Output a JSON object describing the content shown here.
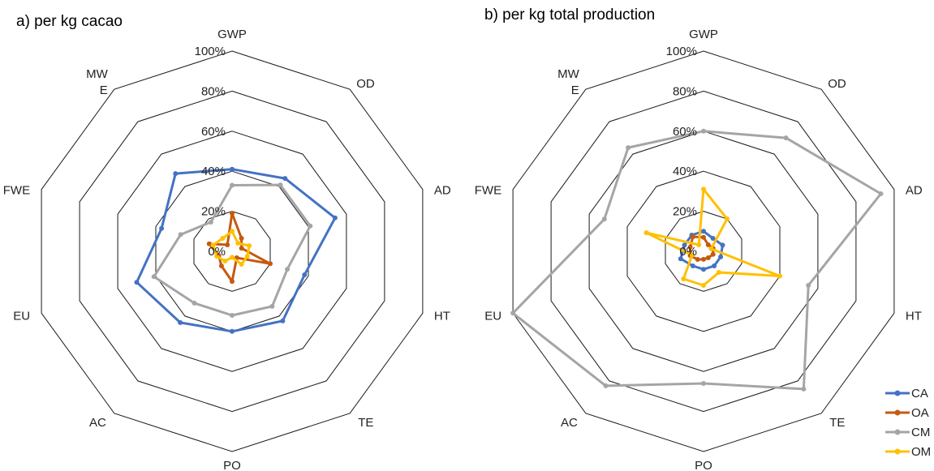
{
  "chart_data": [
    {
      "type": "radar",
      "title": "a) per kg cacao",
      "axes": [
        "GWP",
        "OD",
        "AD",
        "HT",
        "TE",
        "PO",
        "AC",
        "EU",
        "FWE",
        "MWE"
      ],
      "axis_labels": [
        [
          "GWP"
        ],
        [
          "OD"
        ],
        [
          "AD"
        ],
        [
          "HT"
        ],
        [
          "TE"
        ],
        [
          "PO"
        ],
        [
          "AC"
        ],
        [
          "EU"
        ],
        [
          "FWE"
        ],
        [
          "MW",
          "E"
        ]
      ],
      "ticks": [
        "0%",
        "20%",
        "40%",
        "60%",
        "80%",
        "100%"
      ],
      "range": [
        0,
        100
      ],
      "series": [
        {
          "name": "CA",
          "color": "#4472C4",
          "values": [
            41,
            45,
            54,
            38,
            43,
            40,
            44,
            50,
            37,
            48
          ]
        },
        {
          "name": "OA",
          "color": "#C55A11",
          "values": [
            19,
            8,
            5,
            20,
            4,
            15,
            9,
            7,
            12,
            4
          ]
        },
        {
          "name": "CM",
          "color": "#A5A5A5",
          "values": [
            33,
            41,
            41,
            29,
            34,
            32,
            32,
            41,
            27,
            18
          ]
        },
        {
          "name": "OM",
          "color": "#FFC000",
          "values": [
            10,
            5,
            9,
            8,
            8,
            3,
            6,
            8,
            10,
            8
          ]
        }
      ]
    },
    {
      "type": "radar",
      "title": "b) per kg total production",
      "axes": [
        "GWP",
        "OD",
        "AD",
        "HT",
        "TE",
        "PO",
        "AC",
        "EU",
        "FWE",
        "MWE"
      ],
      "axis_labels": [
        [
          "GWP"
        ],
        [
          "OD"
        ],
        [
          "AD"
        ],
        [
          "HT"
        ],
        [
          "TE"
        ],
        [
          "PO"
        ],
        [
          "AC"
        ],
        [
          "EU"
        ],
        [
          "FWE"
        ],
        [
          "MW",
          "E"
        ]
      ],
      "ticks": [
        "0%",
        "20%",
        "40%",
        "60%",
        "80%",
        "100%"
      ],
      "range": [
        0,
        100
      ],
      "series": [
        {
          "name": "CA",
          "color": "#4472C4",
          "values": [
            10,
            8,
            10,
            9,
            9,
            9,
            9,
            12,
            10,
            10
          ]
        },
        {
          "name": "OA",
          "color": "#C55A11",
          "values": [
            7,
            4,
            5,
            5,
            4,
            4,
            5,
            7,
            7,
            9
          ]
        },
        {
          "name": "CM",
          "color": "#A5A5A5",
          "values": [
            60,
            70,
            93,
            55,
            85,
            66,
            83,
            100,
            52,
            64
          ]
        },
        {
          "name": "OM",
          "color": "#FFC000",
          "values": [
            31,
            20,
            4,
            40,
            13,
            17,
            17,
            6,
            30,
            4
          ]
        }
      ]
    }
  ],
  "legend": {
    "position": "bottom-right",
    "items": [
      {
        "name": "CA",
        "color": "#4472C4"
      },
      {
        "name": "OA",
        "color": "#C55A11"
      },
      {
        "name": "CM",
        "color": "#A5A5A5"
      },
      {
        "name": "OM",
        "color": "#FFC000"
      }
    ]
  }
}
